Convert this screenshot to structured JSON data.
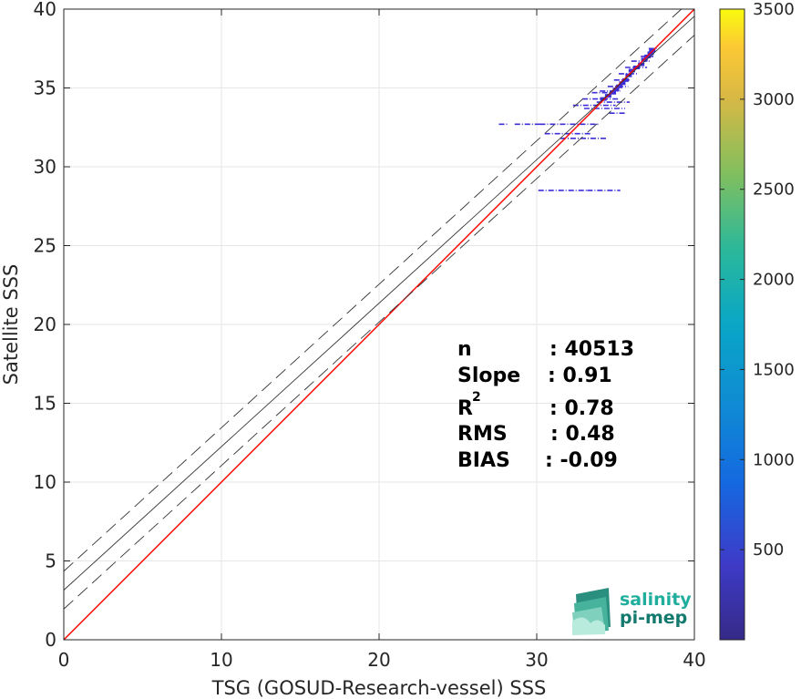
{
  "chart_data": {
    "type": "scatter",
    "subtype": "2d-density-scatter",
    "xlabel": "TSG (GOSUD-Research-vessel) SSS",
    "ylabel": "Satellite SSS",
    "xlim": [
      0,
      40
    ],
    "ylim": [
      0,
      40
    ],
    "xticks": [
      "0",
      "10",
      "20",
      "30",
      "40"
    ],
    "yticks": [
      "0",
      "5",
      "10",
      "15",
      "20",
      "25",
      "30",
      "35",
      "40"
    ],
    "grid": true,
    "colorbar": {
      "range": [
        0,
        3500
      ],
      "ticks": [
        "500",
        "1000",
        "1500",
        "2000",
        "2500",
        "3000",
        "3500"
      ],
      "colormap": "parula"
    },
    "lines": [
      {
        "kind": "identity",
        "color": "#ff0000",
        "slope": 1.0,
        "intercept": 0
      },
      {
        "kind": "regression",
        "color": "#333333",
        "style": "solid",
        "slope": 0.91,
        "intercept": 3.15
      },
      {
        "kind": "regression-upper",
        "color": "#333333",
        "style": "dashed",
        "slope": 0.91,
        "intercept": 4.35
      },
      {
        "kind": "regression-lower",
        "color": "#333333",
        "style": "dashed",
        "slope": 0.91,
        "intercept": 1.95
      }
    ],
    "points": [
      {
        "x": 37.3,
        "y": 37.4,
        "c": 300
      },
      {
        "x": 37.2,
        "y": 37.2,
        "c": 500
      },
      {
        "x": 37.0,
        "y": 37.0,
        "c": 800
      },
      {
        "x": 36.8,
        "y": 36.8,
        "c": 600
      },
      {
        "x": 36.6,
        "y": 36.5,
        "c": 900
      },
      {
        "x": 36.3,
        "y": 36.3,
        "c": 700
      },
      {
        "x": 36.0,
        "y": 36.1,
        "c": 500
      },
      {
        "x": 35.8,
        "y": 35.8,
        "c": 400
      },
      {
        "x": 35.6,
        "y": 35.5,
        "c": 300
      },
      {
        "x": 35.4,
        "y": 35.3,
        "c": 250
      },
      {
        "x": 35.2,
        "y": 35.1,
        "c": 200
      },
      {
        "x": 35.0,
        "y": 34.9,
        "c": 200
      },
      {
        "x": 34.8,
        "y": 34.7,
        "c": 150
      },
      {
        "x": 34.5,
        "y": 34.5,
        "c": 100
      },
      {
        "x": 34.2,
        "y": 34.3,
        "c": 80
      }
    ],
    "segments": [
      {
        "x1": 37.1,
        "x2": 37.6,
        "y": 37.5
      },
      {
        "x1": 36.6,
        "x2": 37.4,
        "y": 37.0
      },
      {
        "x1": 36.0,
        "x2": 37.2,
        "y": 36.7
      },
      {
        "x1": 35.6,
        "x2": 37.0,
        "y": 36.3
      },
      {
        "x1": 35.2,
        "x2": 36.4,
        "y": 35.9
      },
      {
        "x1": 34.9,
        "x2": 36.0,
        "y": 35.5
      },
      {
        "x1": 34.5,
        "x2": 35.8,
        "y": 35.1
      },
      {
        "x1": 34.0,
        "x2": 35.3,
        "y": 34.8
      },
      {
        "x1": 33.5,
        "x2": 34.8,
        "y": 34.7
      },
      {
        "x1": 32.9,
        "x2": 35.2,
        "y": 34.3
      },
      {
        "x1": 33.8,
        "x2": 35.9,
        "y": 34.1
      },
      {
        "x1": 32.3,
        "x2": 35.0,
        "y": 33.9
      },
      {
        "x1": 33.0,
        "x2": 35.6,
        "y": 33.7
      },
      {
        "x1": 34.6,
        "x2": 35.7,
        "y": 33.4
      },
      {
        "x1": 27.6,
        "x2": 28.2,
        "y": 32.7
      },
      {
        "x1": 28.6,
        "x2": 30.4,
        "y": 32.7
      },
      {
        "x1": 30.2,
        "x2": 33.9,
        "y": 32.7
      },
      {
        "x1": 30.5,
        "x2": 33.5,
        "y": 32.1
      },
      {
        "x1": 31.5,
        "x2": 34.4,
        "y": 31.8
      },
      {
        "x1": 30.1,
        "x2": 33.2,
        "y": 28.5
      },
      {
        "x1": 33.2,
        "x2": 35.3,
        "y": 28.5
      }
    ]
  },
  "stats": {
    "n_label": "n",
    "n_value": ": 40513",
    "slope_label": "Slope",
    "slope_value": ": 0.91",
    "r2_label": "R",
    "r2_sup": "2",
    "r2_value": ": 0.78",
    "rms_label": "RMS",
    "rms_value": ": 0.48",
    "bias_label": "BIAS",
    "bias_value": ": -0.09"
  },
  "logo": {
    "line1": "salinity",
    "line2": "pi-mep",
    "color1": "#1fae9c",
    "color2": "#157a6e"
  },
  "colors": {
    "identity": "#ff0000",
    "regression": "#333333",
    "points": "#3c2fd8"
  }
}
